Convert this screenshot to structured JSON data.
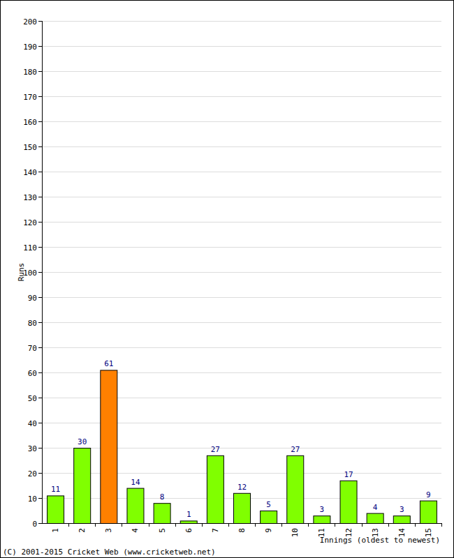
{
  "chart_data": {
    "type": "bar",
    "x_label": "Innings (oldest to newest)",
    "y_label": "Runs",
    "annotations": [
      "(C) 2001-2015 Cricket Web (www.cricketweb.net)"
    ],
    "categories": [
      "1",
      "2",
      "3",
      "4",
      "5",
      "6",
      "7",
      "8",
      "9",
      "10",
      "11",
      "12",
      "13",
      "14",
      "15"
    ],
    "values": [
      11,
      30,
      61,
      14,
      8,
      1,
      27,
      12,
      5,
      27,
      3,
      17,
      4,
      3,
      9
    ],
    "colors": [
      "#80ff00",
      "#80ff00",
      "#ff8000",
      "#80ff00",
      "#80ff00",
      "#80ff00",
      "#80ff00",
      "#80ff00",
      "#80ff00",
      "#80ff00",
      "#80ff00",
      "#80ff00",
      "#80ff00",
      "#80ff00",
      "#80ff00"
    ],
    "ylim": [
      0,
      200
    ],
    "yticks": [
      0,
      10,
      20,
      30,
      40,
      50,
      60,
      70,
      80,
      90,
      100,
      110,
      120,
      130,
      140,
      150,
      160,
      170,
      180,
      190,
      200
    ],
    "grid": true,
    "data_labels": true
  }
}
